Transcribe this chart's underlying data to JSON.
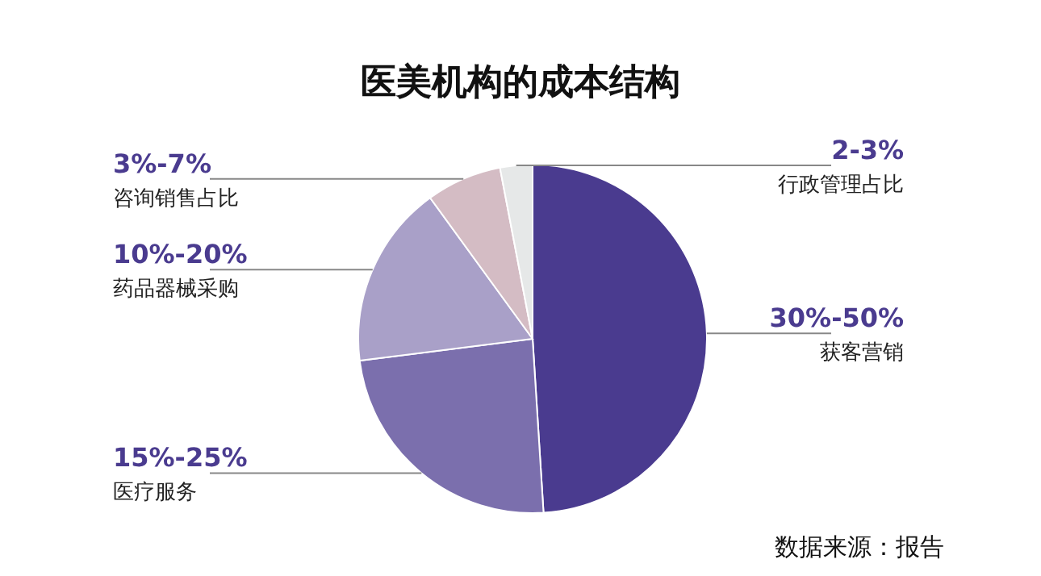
{
  "chart_data": {
    "type": "pie",
    "title": "医美机构的成本结构",
    "categories": [
      "获客营销",
      "医疗服务",
      "药品器械采购",
      "咨询销售占比",
      "行政管理占比"
    ],
    "values": [
      49,
      24,
      17,
      7,
      3
    ],
    "colors": [
      "#4a3b8f",
      "#7b6fad",
      "#a9a0c8",
      "#d4bcc4",
      "#e6e8e8"
    ],
    "annotations": [
      {
        "text": "30%-50%",
        "x": "获客营销"
      },
      {
        "text": "15%-25%",
        "x": "医疗服务"
      },
      {
        "text": "10%-20%",
        "x": "药品器械采购"
      },
      {
        "text": "3%-7%",
        "x": "咨询销售占比"
      },
      {
        "text": "2-3%",
        "x": "行政管理占比"
      },
      "数据来源：报告"
    ],
    "legend": false
  }
}
